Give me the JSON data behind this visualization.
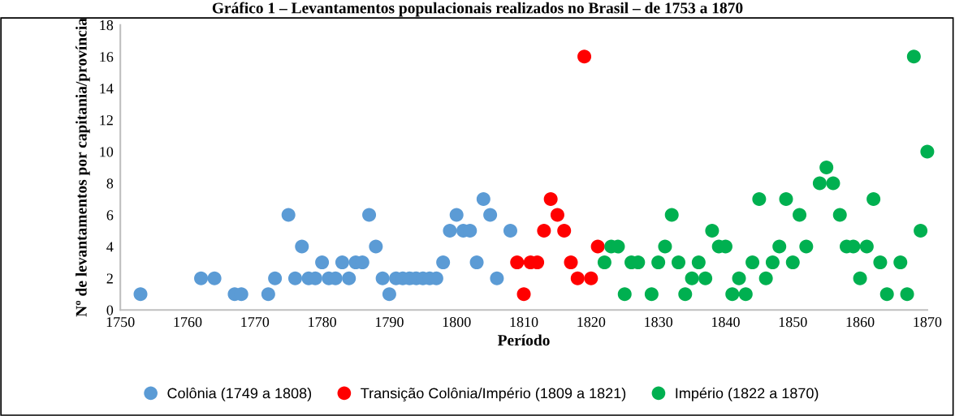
{
  "chart_data": {
    "type": "scatter",
    "title": "Gráfico 1 – Levantamentos populacionais realizados no Brasil – de 1753 a 1870",
    "xlabel": "Período",
    "ylabel": "Nº de levantamentos por capitania/província",
    "xlim": [
      1750,
      1870
    ],
    "xticks": [
      1750,
      1760,
      1770,
      1780,
      1790,
      1800,
      1810,
      1820,
      1830,
      1840,
      1850,
      1860,
      1870
    ],
    "ylim": [
      0,
      18
    ],
    "yticks": [
      0,
      2,
      4,
      6,
      8,
      10,
      12,
      14,
      16,
      18
    ],
    "grid": false,
    "legend": "bottom",
    "marker": "circle",
    "series": [
      {
        "name": "Colônia (1749 a 1808)",
        "color": "#5b9bd5",
        "x": [
          1753,
          1762,
          1764,
          1767,
          1768,
          1772,
          1773,
          1775,
          1776,
          1777,
          1778,
          1779,
          1780,
          1781,
          1782,
          1783,
          1784,
          1785,
          1786,
          1787,
          1788,
          1789,
          1790,
          1791,
          1792,
          1793,
          1794,
          1795,
          1796,
          1797,
          1798,
          1799,
          1800,
          1801,
          1802,
          1803,
          1804,
          1805,
          1806,
          1808
        ],
        "values": [
          1,
          2,
          2,
          1,
          1,
          1,
          2,
          6,
          2,
          4,
          2,
          2,
          3,
          2,
          2,
          3,
          2,
          3,
          3,
          6,
          4,
          2,
          1,
          2,
          2,
          2,
          2,
          2,
          2,
          2,
          3,
          5,
          6,
          5,
          5,
          3,
          7,
          6,
          2,
          5
        ]
      },
      {
        "name": "Transição Colônia/Império (1809 a 1821)",
        "color": "#ff0000",
        "x": [
          1809,
          1810,
          1811,
          1812,
          1813,
          1814,
          1815,
          1816,
          1817,
          1818,
          1819,
          1820,
          1821
        ],
        "values": [
          3,
          1,
          3,
          3,
          5,
          7,
          6,
          5,
          3,
          2,
          16,
          2,
          4
        ]
      },
      {
        "name": "Império (1822 a 1870)",
        "color": "#00b050",
        "x": [
          1822,
          1823,
          1824,
          1825,
          1826,
          1827,
          1829,
          1830,
          1831,
          1832,
          1833,
          1834,
          1835,
          1836,
          1837,
          1838,
          1839,
          1840,
          1841,
          1842,
          1843,
          1844,
          1845,
          1846,
          1847,
          1848,
          1849,
          1850,
          1851,
          1852,
          1854,
          1855,
          1856,
          1857,
          1858,
          1859,
          1860,
          1861,
          1862,
          1863,
          1864,
          1866,
          1867,
          1868,
          1869,
          1870
        ],
        "values": [
          3,
          4,
          4,
          1,
          3,
          3,
          1,
          3,
          4,
          6,
          3,
          1,
          2,
          3,
          2,
          5,
          4,
          4,
          1,
          2,
          1,
          3,
          7,
          2,
          3,
          4,
          7,
          3,
          6,
          4,
          8,
          9,
          8,
          6,
          4,
          4,
          2,
          4,
          7,
          3,
          1,
          3,
          1,
          16,
          5,
          10
        ]
      }
    ]
  }
}
